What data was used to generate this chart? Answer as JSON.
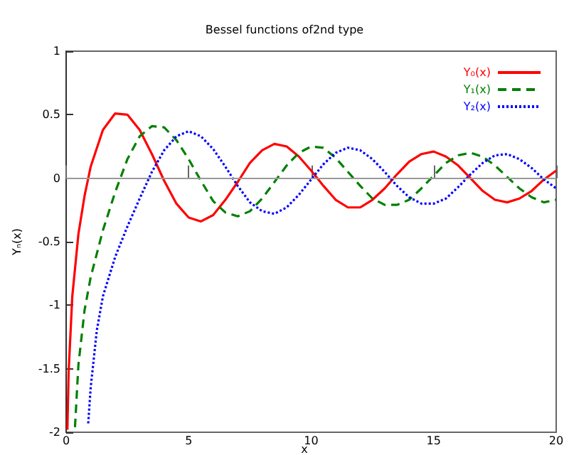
{
  "chart_data": {
    "type": "line",
    "title": "Bessel functions of2nd type",
    "xlabel": "x",
    "ylabel": "Yₙ(x)",
    "xlim": [
      0,
      20
    ],
    "xticks": [
      0,
      5,
      10,
      15,
      20
    ],
    "ylim": [
      -2,
      1
    ],
    "yticks": [
      -2,
      -1.5,
      -1,
      -0.5,
      0,
      0.5,
      1
    ],
    "grid": false,
    "ref_lines": [
      {
        "axis": "y",
        "value": 0,
        "color": "#999999"
      }
    ],
    "legend": "top right",
    "marker": "none",
    "series": [
      {
        "name": "Y₀(x)",
        "color": "#ff0000",
        "line_style": "solid",
        "x": [
          0.05,
          0.1,
          0.25,
          0.5,
          0.75,
          1,
          1.5,
          2,
          2.5,
          3,
          3.5,
          4,
          4.5,
          5,
          5.5,
          6,
          6.5,
          7,
          7.5,
          8,
          8.5,
          9,
          9.5,
          10,
          10.5,
          11,
          11.5,
          12,
          12.5,
          13,
          13.5,
          14,
          14.5,
          15,
          15.5,
          16,
          16.5,
          17,
          17.5,
          18,
          18.5,
          19,
          19.5,
          20
        ],
        "values": [
          -1.98,
          -1.53,
          -0.93,
          -0.44,
          -0.14,
          0.09,
          0.38,
          0.51,
          0.5,
          0.38,
          0.19,
          -0.02,
          -0.2,
          -0.31,
          -0.34,
          -0.29,
          -0.17,
          -0.03,
          0.12,
          0.22,
          0.27,
          0.25,
          0.17,
          0.06,
          -0.06,
          -0.17,
          -0.23,
          -0.23,
          -0.17,
          -0.08,
          0.03,
          0.13,
          0.19,
          0.21,
          0.17,
          0.1,
          0,
          -0.1,
          -0.17,
          -0.19,
          -0.16,
          -0.1,
          -0.01,
          0.06
        ]
      },
      {
        "name": "Y₁(x)",
        "color": "#008000",
        "line_style": "dashed",
        "x": [
          0.36,
          0.5,
          0.75,
          1,
          1.5,
          2,
          2.5,
          3,
          3.5,
          4,
          4.5,
          5,
          5.5,
          6,
          6.5,
          7,
          7.5,
          8,
          8.5,
          9,
          9.5,
          10,
          10.5,
          11,
          11.5,
          12,
          12.5,
          13,
          13.5,
          14,
          14.5,
          15,
          15.5,
          16,
          16.5,
          17,
          17.5,
          18,
          18.5,
          19,
          19.5,
          20
        ],
        "values": [
          -1.96,
          -1.47,
          -1.04,
          -0.78,
          -0.41,
          -0.11,
          0.15,
          0.33,
          0.41,
          0.4,
          0.3,
          0.15,
          -0.02,
          -0.18,
          -0.27,
          -0.3,
          -0.26,
          -0.16,
          -0.03,
          0.1,
          0.2,
          0.25,
          0.24,
          0.16,
          0.05,
          -0.06,
          -0.16,
          -0.21,
          -0.21,
          -0.17,
          -0.08,
          0.02,
          0.12,
          0.18,
          0.2,
          0.17,
          0.1,
          0.01,
          -0.08,
          -0.15,
          -0.19,
          -0.17
        ]
      },
      {
        "name": "Y₂(x)",
        "color": "#0000ff",
        "line_style": "dotted",
        "x": [
          0.9,
          1,
          1.25,
          1.5,
          2,
          2.5,
          3,
          3.5,
          4,
          4.5,
          5,
          5.5,
          6,
          6.5,
          7,
          7.5,
          8,
          8.5,
          9,
          9.5,
          10,
          10.5,
          11,
          11.5,
          12,
          12.5,
          13,
          13.5,
          14,
          14.5,
          15,
          15.5,
          16,
          16.5,
          17,
          17.5,
          18,
          18.5,
          19,
          19.5,
          20
        ],
        "values": [
          -1.93,
          -1.65,
          -1.2,
          -0.93,
          -0.62,
          -0.38,
          -0.16,
          0.05,
          0.22,
          0.33,
          0.37,
          0.33,
          0.23,
          0.09,
          -0.06,
          -0.19,
          -0.26,
          -0.28,
          -0.23,
          -0.13,
          -0.01,
          0.11,
          0.2,
          0.24,
          0.22,
          0.15,
          0.05,
          -0.06,
          -0.15,
          -0.2,
          -0.2,
          -0.16,
          -0.07,
          0.03,
          0.12,
          0.18,
          0.19,
          0.15,
          0.08,
          -0.01,
          -0.08
        ]
      }
    ]
  }
}
